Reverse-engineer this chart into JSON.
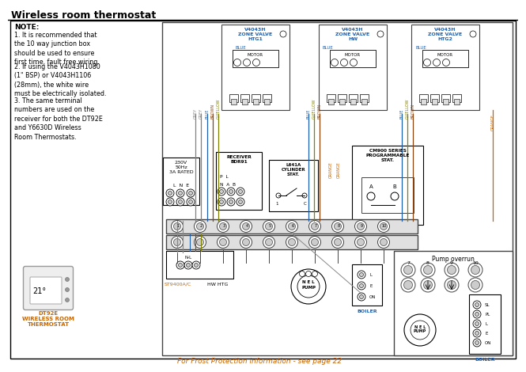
{
  "title": "Wireless room thermostat",
  "bg": "#ffffff",
  "black": "#000000",
  "blue": "#1e5fac",
  "orange": "#c86400",
  "red": "#cc0000",
  "gray": "#888888",
  "lgray": "#cccccc",
  "dgray": "#444444",
  "note_bold": "NOTE:",
  "note1": "1. It is recommended that\nthe 10 way junction box\nshould be used to ensure\nfirst time, fault free wiring.",
  "note2": "2. If using the V4043H1080\n(1\" BSP) or V4043H1106\n(28mm), the white wire\nmust be electrically isolated.",
  "note3": "3. The same terminal\nnumbers are used on the\nreceiver for both the DT92E\nand Y6630D Wireless\nRoom Thermostats.",
  "footer": "For Frost Protection information - see page 22",
  "zv_labels": [
    "V4043H\nZONE VALVE\nHTG1",
    "V4043H\nZONE VALVE\nHW",
    "V4043H\nZONE VALVE\nHTG2"
  ],
  "dt92e": "DT92E\nWIRELESS ROOM\nTHERMOSTAT",
  "pump_overrun": "Pump overrun",
  "boiler": "BOILER",
  "st9400": "ST9400A/C",
  "hwhtg": "HW HTG",
  "voltage": "230V\n50Hz\n3A RATED",
  "receiver": "RECEIVER\nBDR91",
  "cylinder": "L641A\nCYLINDER\nSTAT.",
  "cm900": "CM900 SERIES\nPROGRAMMABLE\nSTAT."
}
